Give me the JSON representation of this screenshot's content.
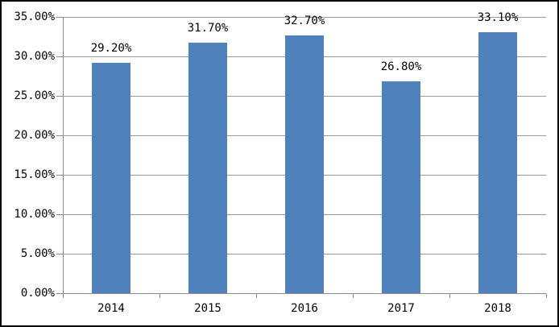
{
  "chart_data": {
    "type": "bar",
    "title": "",
    "categories": [
      "2014",
      "2015",
      "2016",
      "2017",
      "2018"
    ],
    "values": [
      29.2,
      31.7,
      32.7,
      26.8,
      33.1
    ],
    "data_labels": [
      "29.20%",
      "31.70%",
      "32.70%",
      "26.80%",
      "33.10%"
    ],
    "y_tick_labels": [
      "0.00%",
      "5.00%",
      "10.00%",
      "15.00%",
      "20.00%",
      "25.00%",
      "30.00%",
      "35.00%"
    ],
    "ylim": [
      0,
      35
    ],
    "y_tick_step": 5,
    "xlabel": "",
    "ylabel": "",
    "grid": true,
    "legend_position": "none",
    "colors": {
      "bar": "#4F81BD",
      "gridline": "#9a9a9a",
      "axis": "#8c8c8c",
      "text": "#000000",
      "frame_border": "#000000",
      "background": "#ffffff"
    }
  }
}
